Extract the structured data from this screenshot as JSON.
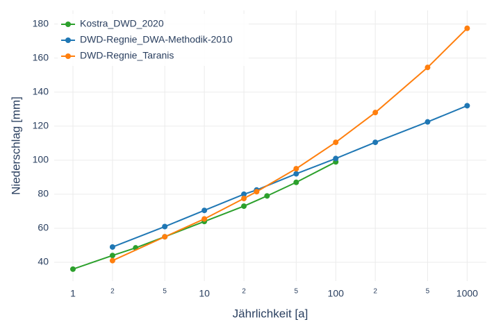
{
  "chart_data": {
    "type": "line",
    "xlabel": "Jährlichkeit [a]",
    "ylabel": "Niederschlag [mm]",
    "xscale": "log",
    "grid": true,
    "legend": "top-left",
    "xlim": [
      0.72,
      1400
    ],
    "ylim": [
      29,
      188
    ],
    "xticks": [
      1,
      {
        "value": 2,
        "label": "2"
      },
      {
        "value": 5,
        "label": "5"
      },
      10,
      {
        "value": 20,
        "label": "2"
      },
      {
        "value": 50,
        "label": "5"
      },
      100,
      {
        "value": 200,
        "label": "2"
      },
      {
        "value": 500,
        "label": "5"
      },
      1000
    ],
    "yticks": [
      40,
      60,
      80,
      100,
      120,
      140,
      160,
      180
    ],
    "series": [
      {
        "name": "Kostra_DWD_2020",
        "color": "#2ca02c",
        "x": [
          1,
          2,
          3,
          5,
          10,
          20,
          30,
          50,
          100
        ],
        "values": [
          36,
          44,
          48.5,
          55,
          64,
          73,
          79,
          87,
          99
        ]
      },
      {
        "name": "DWD-Regnie_DWA-Methodik-2010",
        "color": "#1f77b4",
        "x": [
          2,
          5,
          10,
          20,
          25,
          50,
          100,
          200,
          500,
          1000
        ],
        "values": [
          49,
          61,
          70.5,
          80,
          82.5,
          92,
          101,
          110.5,
          122.5,
          132
        ]
      },
      {
        "name": "DWD-Regnie_Taranis",
        "color": "#ff7f0e",
        "x": [
          2,
          5,
          10,
          20,
          25,
          50,
          100,
          200,
          500,
          1000
        ],
        "values": [
          41,
          55,
          65.5,
          77.5,
          81.5,
          95,
          110.5,
          128,
          154.5,
          177.5
        ]
      }
    ]
  }
}
